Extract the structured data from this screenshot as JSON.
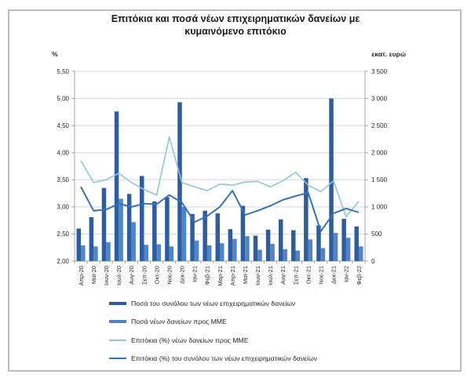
{
  "title": {
    "line1": "Επιτόκια και ποσά νέων επιχειρηματικών δανείων με",
    "line2": "κυμαινόμενο επιτόκιο"
  },
  "axes": {
    "left_unit": "%",
    "right_unit": "εκατ. ευρώ",
    "left_ticks": [
      "5,50",
      "5,00",
      "4,50",
      "4,00",
      "3,50",
      "3,00",
      "2,50",
      "2,00"
    ],
    "right_ticks": [
      "3 500",
      "3 000",
      "2 500",
      "2 000",
      "1 500",
      "1 000",
      "500",
      "0"
    ]
  },
  "colors": {
    "total_bar": "#2E5C9E",
    "sme_bar": "#4E86C8",
    "sme_rate_line": "#8DC6DD",
    "total_rate_line": "#3473B9",
    "gridline": "#D9D9D9",
    "axis_line": "#A6A6A6",
    "tick_text": "#262626"
  },
  "chart_data": {
    "type": "combo",
    "categories": [
      "Απρ-20",
      "Μαϊ-20",
      "Ιουν-20",
      "Ιουλ-20",
      "Αυγ-20",
      "Σεπ-20",
      "Οκτ-20",
      "Νοε-20",
      "Δεκ-20",
      "Ιαν-21",
      "Φεβ-21",
      "Μαρ-21",
      "Απρ-21",
      "Μαϊ-21",
      "Ιουν-21",
      "Ιουλ-21",
      "Αυγ-21",
      "Σεπ-21",
      "Οκτ-21",
      "Νοε-21",
      "Δεκ-21",
      "Ιαν-22",
      "Φεβ-22"
    ],
    "left_axis": {
      "label": "%",
      "min": 2.0,
      "max": 5.5,
      "step": 0.5
    },
    "right_axis": {
      "label": "εκατ. ευρώ",
      "min": 0,
      "max": 3500,
      "step": 500
    },
    "grid": true,
    "legend_position": "bottom-left",
    "series": [
      {
        "name": "Ποσά του συνόλου των νέων επιχειρηματικών δανείων",
        "type": "bar",
        "axis": "right",
        "color": "#2E5C9E",
        "values": [
          600,
          810,
          1350,
          2760,
          1240,
          1570,
          1100,
          1180,
          2930,
          870,
          930,
          880,
          590,
          1020,
          470,
          580,
          770,
          570,
          1530,
          660,
          3000,
          780,
          640
        ]
      },
      {
        "name": "Ποσά νέων δανείων προς ΜΜΕ",
        "type": "bar",
        "axis": "right",
        "color": "#4E86C8",
        "values": [
          290,
          270,
          350,
          1150,
          720,
          300,
          310,
          270,
          1000,
          380,
          290,
          330,
          410,
          460,
          210,
          320,
          220,
          195,
          400,
          240,
          520,
          430,
          270
        ]
      },
      {
        "name": "Επιτόκια (%) νέων δανείων προς ΜΜΕ",
        "type": "line",
        "axis": "left",
        "color": "#8DC6DD",
        "values": [
          3.85,
          3.45,
          3.5,
          3.62,
          3.45,
          3.32,
          3.22,
          4.29,
          3.45,
          3.37,
          3.3,
          3.42,
          3.4,
          3.46,
          3.47,
          3.37,
          3.48,
          3.64,
          3.4,
          3.28,
          3.48,
          2.82,
          3.1
        ]
      },
      {
        "name": "Επιτόκια (%) του συνόλου των νέων επιχειρηματικών δανείων",
        "type": "line",
        "axis": "left",
        "color": "#3473B9",
        "values": [
          3.37,
          2.93,
          2.95,
          3.06,
          3.0,
          3.06,
          3.05,
          3.22,
          3.08,
          2.72,
          2.83,
          3.0,
          3.3,
          2.85,
          2.93,
          3.02,
          3.13,
          3.2,
          3.26,
          2.55,
          2.88,
          2.97,
          2.9
        ]
      }
    ]
  },
  "legend": {
    "items": [
      {
        "swatch": "bar",
        "series": 0
      },
      {
        "swatch": "bar",
        "series": 1
      },
      {
        "swatch": "thinline",
        "series": 2
      },
      {
        "swatch": "thickline",
        "series": 3
      }
    ]
  }
}
